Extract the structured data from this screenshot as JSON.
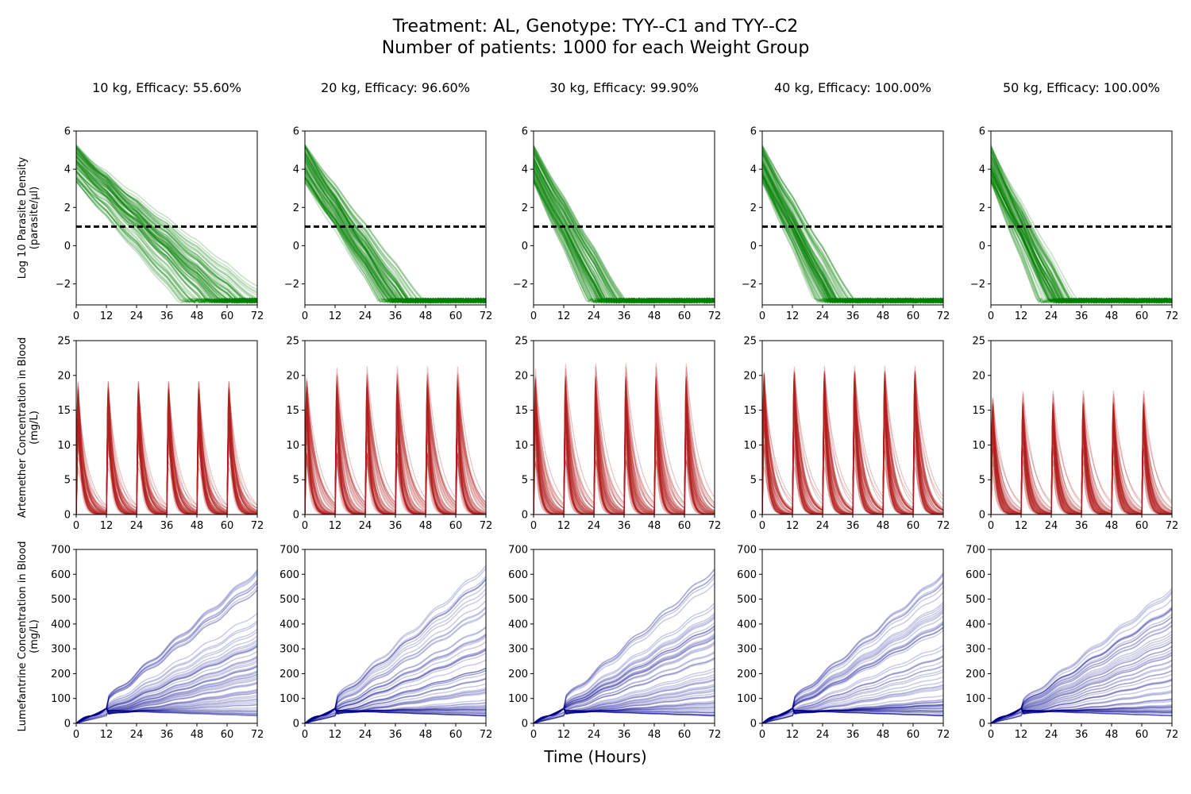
{
  "figure": {
    "title_line1": "Treatment: AL, Genotype: TYY--C1 and TYY--C2",
    "title_line2": "Number of patients: 1000 for each Weight Group",
    "xlabel": "Time (Hours)"
  },
  "colors": {
    "parasite": "#008000",
    "artemether": "#b22222",
    "lumefantrine": "#00008b",
    "threshold": "#000000"
  },
  "rows": [
    {
      "key": "parasite",
      "ylabel_line1": "Log 10 Parasite Density",
      "ylabel_line2": "(parasite/µl)"
    },
    {
      "key": "artemether",
      "ylabel_line1": "Artemether Concentration in Blood",
      "ylabel_line2": "(mg/L)"
    },
    {
      "key": "lumefantrine",
      "ylabel_line1": "Lumefantrine Concentration in Blood",
      "ylabel_line2": "(mg/L)"
    }
  ],
  "chart_data": [
    {
      "type": "line",
      "row": "parasite",
      "columns": [
        {
          "title": "10 kg, Efficacy: 55.60%",
          "weight_kg": 10,
          "efficacy_pct": 55.6,
          "start_range": [
            3.3,
            5.3
          ],
          "slope_range": [
            0.1,
            0.16
          ],
          "floor": -3.0
        },
        {
          "title": "20 kg, Efficacy: 96.60%",
          "weight_kg": 20,
          "efficacy_pct": 96.6,
          "start_range": [
            3.3,
            5.3
          ],
          "slope_range": [
            0.17,
            0.24
          ],
          "floor": -3.0
        },
        {
          "title": "30 kg, Efficacy: 99.90%",
          "weight_kg": 30,
          "efficacy_pct": 99.9,
          "start_range": [
            3.3,
            5.3
          ],
          "slope_range": [
            0.22,
            0.3
          ],
          "floor": -3.0
        },
        {
          "title": "40 kg, Efficacy: 100.00%",
          "weight_kg": 40,
          "efficacy_pct": 100.0,
          "start_range": [
            3.3,
            5.3
          ],
          "slope_range": [
            0.22,
            0.32
          ],
          "floor": -3.0
        },
        {
          "title": "50 kg, Efficacy: 100.00%",
          "weight_kg": 50,
          "efficacy_pct": 100.0,
          "start_range": [
            3.3,
            5.3
          ],
          "slope_range": [
            0.23,
            0.34
          ],
          "floor": -3.0
        }
      ],
      "threshold": 1,
      "xlim": [
        0,
        72
      ],
      "ylim": [
        -3.1,
        6
      ],
      "xticks": [
        0,
        12,
        24,
        36,
        48,
        60,
        72
      ],
      "yticks": [
        -2,
        0,
        2,
        4,
        6
      ]
    },
    {
      "type": "line",
      "row": "artemether",
      "columns": [
        {
          "weight_kg": 10,
          "peak_max": 20.5,
          "peak_min": 3.0,
          "dose_times": [
            0,
            12,
            24,
            36,
            48,
            60
          ]
        },
        {
          "weight_kg": 20,
          "peak_max": 21.0,
          "peak_min": 3.0,
          "dose_times": [
            0,
            12,
            24,
            36,
            48,
            60
          ]
        },
        {
          "weight_kg": 30,
          "peak_max": 22.0,
          "peak_min": 3.0,
          "dose_times": [
            0,
            12,
            24,
            36,
            48,
            60
          ]
        },
        {
          "weight_kg": 40,
          "peak_max": 22.5,
          "peak_min": 3.0,
          "dose_times": [
            0,
            12,
            24,
            36,
            48,
            60
          ]
        },
        {
          "weight_kg": 50,
          "peak_max": 18.0,
          "peak_min": 3.0,
          "dose_times": [
            0,
            12,
            24,
            36,
            48,
            60
          ]
        }
      ],
      "xlim": [
        0,
        72
      ],
      "ylim": [
        0,
        25
      ],
      "xticks": [
        0,
        12,
        24,
        36,
        48,
        60,
        72
      ],
      "yticks": [
        0,
        5,
        10,
        15,
        20,
        25
      ]
    },
    {
      "type": "line",
      "row": "lumefantrine",
      "columns": [
        {
          "weight_kg": 10,
          "end_max": 620
        },
        {
          "weight_kg": 20,
          "end_max": 650
        },
        {
          "weight_kg": 30,
          "end_max": 640
        },
        {
          "weight_kg": 40,
          "end_max": 620
        },
        {
          "weight_kg": 50,
          "end_max": 550
        }
      ],
      "xlim": [
        0,
        72
      ],
      "ylim": [
        0,
        700
      ],
      "xticks": [
        0,
        12,
        24,
        36,
        48,
        60,
        72
      ],
      "yticks": [
        0,
        100,
        200,
        300,
        400,
        500,
        600,
        700
      ]
    }
  ]
}
